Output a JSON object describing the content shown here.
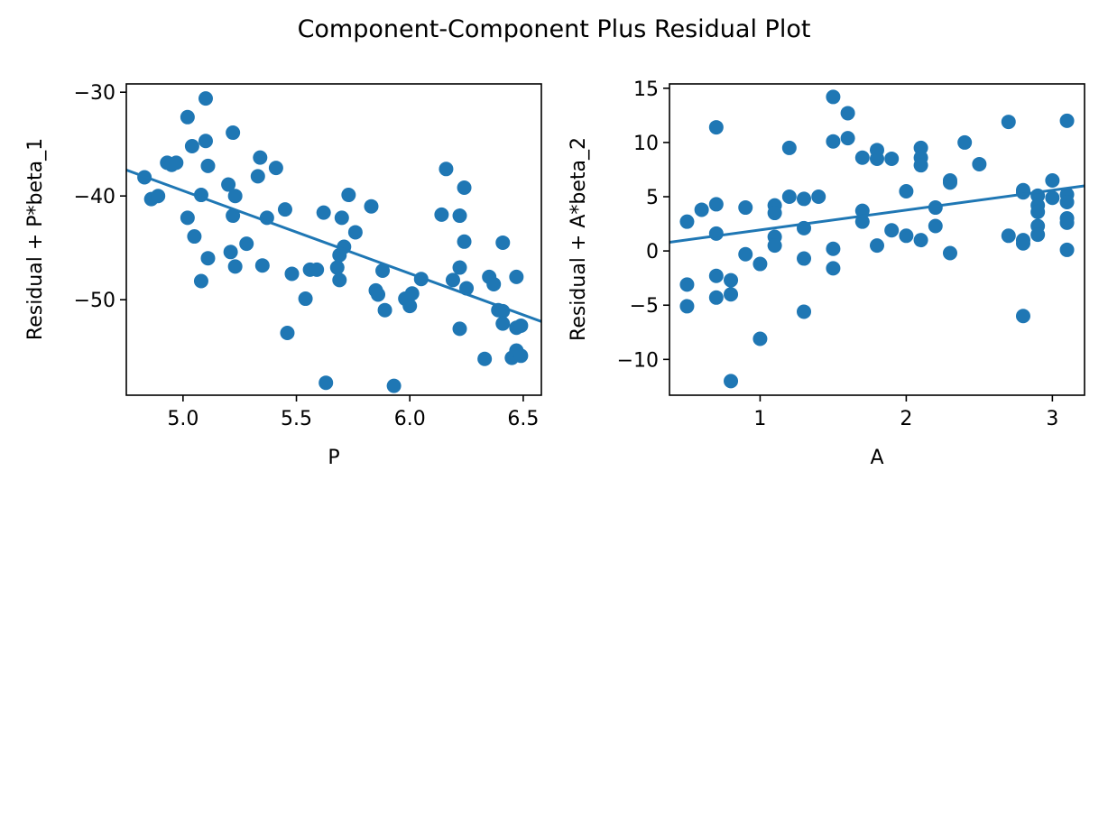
{
  "figure": {
    "title": "Component-Component Plus Residual Plot"
  },
  "colors": {
    "series": "#1f77b4",
    "axes": "#000000",
    "background": "#ffffff"
  },
  "chart_data": [
    {
      "type": "scatter",
      "panel": "left",
      "title": "",
      "xlabel": "P",
      "ylabel": "Residual + P*beta_1",
      "xlim": [
        4.75,
        6.58
      ],
      "ylim": [
        -59.2,
        -29.2
      ],
      "xticks": [
        5.0,
        5.5,
        6.0,
        6.5
      ],
      "xtick_labels": [
        "5.0",
        "5.5",
        "6.0",
        "6.5"
      ],
      "yticks": [
        -30,
        -40,
        -50
      ],
      "ytick_labels": [
        "−30",
        "−40",
        "−50"
      ],
      "grid": false,
      "points": [
        [
          4.83,
          -38.2
        ],
        [
          4.86,
          -40.3
        ],
        [
          4.89,
          -40.0
        ],
        [
          4.93,
          -36.8
        ],
        [
          4.95,
          -37.0
        ],
        [
          4.97,
          -36.8
        ],
        [
          5.02,
          -32.4
        ],
        [
          5.02,
          -42.1
        ],
        [
          5.04,
          -35.2
        ],
        [
          5.05,
          -43.9
        ],
        [
          5.08,
          -39.9
        ],
        [
          5.08,
          -48.2
        ],
        [
          5.1,
          -30.6
        ],
        [
          5.1,
          -34.7
        ],
        [
          5.11,
          -37.1
        ],
        [
          5.11,
          -46.0
        ],
        [
          5.2,
          -38.9
        ],
        [
          5.21,
          -45.4
        ],
        [
          5.22,
          -33.9
        ],
        [
          5.22,
          -41.9
        ],
        [
          5.23,
          -40.0
        ],
        [
          5.23,
          -46.8
        ],
        [
          5.28,
          -44.6
        ],
        [
          5.33,
          -38.1
        ],
        [
          5.34,
          -36.3
        ],
        [
          5.35,
          -46.7
        ],
        [
          5.37,
          -42.1
        ],
        [
          5.41,
          -37.3
        ],
        [
          5.45,
          -41.3
        ],
        [
          5.46,
          -53.2
        ],
        [
          5.48,
          -47.5
        ],
        [
          5.54,
          -49.9
        ],
        [
          5.56,
          -47.1
        ],
        [
          5.59,
          -47.1
        ],
        [
          5.62,
          -41.6
        ],
        [
          5.63,
          -58.0
        ],
        [
          5.68,
          -46.9
        ],
        [
          5.69,
          -45.7
        ],
        [
          5.69,
          -48.1
        ],
        [
          5.7,
          -42.1
        ],
        [
          5.71,
          -44.9
        ],
        [
          5.73,
          -39.9
        ],
        [
          5.76,
          -43.5
        ],
        [
          5.83,
          -41.0
        ],
        [
          5.85,
          -49.1
        ],
        [
          5.86,
          -49.5
        ],
        [
          5.88,
          -47.2
        ],
        [
          5.89,
          -51.0
        ],
        [
          5.93,
          -58.3
        ],
        [
          5.98,
          -49.9
        ],
        [
          6.0,
          -50.6
        ],
        [
          6.01,
          -49.4
        ],
        [
          6.05,
          -48.0
        ],
        [
          6.14,
          -41.8
        ],
        [
          6.16,
          -37.4
        ],
        [
          6.19,
          -48.1
        ],
        [
          6.22,
          -41.9
        ],
        [
          6.22,
          -46.9
        ],
        [
          6.22,
          -52.8
        ],
        [
          6.24,
          -39.2
        ],
        [
          6.24,
          -44.4
        ],
        [
          6.25,
          -48.9
        ],
        [
          6.33,
          -55.7
        ],
        [
          6.35,
          -47.8
        ],
        [
          6.37,
          -48.5
        ],
        [
          6.39,
          -51.0
        ],
        [
          6.41,
          -44.5
        ],
        [
          6.41,
          -51.1
        ],
        [
          6.41,
          -52.3
        ],
        [
          6.45,
          -55.6
        ],
        [
          6.47,
          -47.8
        ],
        [
          6.47,
          -54.9
        ],
        [
          6.47,
          -52.7
        ],
        [
          6.49,
          -52.5
        ],
        [
          6.49,
          -55.4
        ]
      ],
      "fit_line": {
        "x": [
          4.75,
          6.58
        ],
        "y": [
          -37.5,
          -52.1
        ]
      }
    },
    {
      "type": "scatter",
      "panel": "right",
      "title": "",
      "xlabel": "A",
      "ylabel": "Residual + A*beta_2",
      "xlim": [
        0.38,
        3.22
      ],
      "ylim": [
        -13.3,
        15.4
      ],
      "xticks": [
        1,
        2,
        3
      ],
      "xtick_labels": [
        "1",
        "2",
        "3"
      ],
      "yticks": [
        15,
        10,
        5,
        0,
        -5,
        -10
      ],
      "ytick_labels": [
        "15",
        "10",
        "5",
        "0",
        "−5",
        "−10"
      ],
      "grid": false,
      "points": [
        [
          0.5,
          2.7
        ],
        [
          0.5,
          -3.1
        ],
        [
          0.5,
          -5.1
        ],
        [
          0.6,
          3.8
        ],
        [
          0.7,
          11.4
        ],
        [
          0.7,
          4.3
        ],
        [
          0.7,
          1.6
        ],
        [
          0.7,
          -2.3
        ],
        [
          0.7,
          -4.3
        ],
        [
          0.8,
          -2.7
        ],
        [
          0.8,
          -4.0
        ],
        [
          0.8,
          -12.0
        ],
        [
          0.9,
          4.0
        ],
        [
          0.9,
          -0.3
        ],
        [
          1.0,
          -1.2
        ],
        [
          1.0,
          -8.1
        ],
        [
          1.1,
          4.2
        ],
        [
          1.1,
          3.5
        ],
        [
          1.1,
          1.3
        ],
        [
          1.1,
          0.5
        ],
        [
          1.2,
          9.5
        ],
        [
          1.2,
          5.0
        ],
        [
          1.3,
          4.8
        ],
        [
          1.3,
          2.1
        ],
        [
          1.3,
          -0.7
        ],
        [
          1.3,
          -5.6
        ],
        [
          1.4,
          5.0
        ],
        [
          1.5,
          14.2
        ],
        [
          1.5,
          10.1
        ],
        [
          1.5,
          0.2
        ],
        [
          1.5,
          -1.6
        ],
        [
          1.6,
          12.7
        ],
        [
          1.6,
          10.4
        ],
        [
          1.7,
          8.6
        ],
        [
          1.7,
          3.7
        ],
        [
          1.7,
          2.7
        ],
        [
          1.8,
          9.3
        ],
        [
          1.8,
          8.5
        ],
        [
          1.8,
          0.5
        ],
        [
          1.9,
          8.5
        ],
        [
          1.9,
          1.9
        ],
        [
          2.0,
          5.5
        ],
        [
          2.0,
          1.4
        ],
        [
          2.1,
          9.5
        ],
        [
          2.1,
          8.6
        ],
        [
          2.1,
          7.9
        ],
        [
          2.1,
          1.0
        ],
        [
          2.2,
          4.0
        ],
        [
          2.2,
          2.3
        ],
        [
          2.3,
          6.5
        ],
        [
          2.3,
          6.3
        ],
        [
          2.3,
          -0.2
        ],
        [
          2.4,
          10.0
        ],
        [
          2.5,
          8.0
        ],
        [
          2.7,
          11.9
        ],
        [
          2.7,
          1.4
        ],
        [
          2.8,
          5.6
        ],
        [
          2.8,
          5.4
        ],
        [
          2.8,
          1.0
        ],
        [
          2.8,
          0.7
        ],
        [
          2.8,
          -6.0
        ],
        [
          2.9,
          5.1
        ],
        [
          2.9,
          4.2
        ],
        [
          2.9,
          3.6
        ],
        [
          2.9,
          2.3
        ],
        [
          2.9,
          1.5
        ],
        [
          3.0,
          6.5
        ],
        [
          3.0,
          4.9
        ],
        [
          3.1,
          12.0
        ],
        [
          3.1,
          5.2
        ],
        [
          3.1,
          4.5
        ],
        [
          3.1,
          3.0
        ],
        [
          3.1,
          2.6
        ],
        [
          3.1,
          0.1
        ]
      ],
      "fit_line": {
        "x": [
          0.38,
          3.22
        ],
        "y": [
          0.8,
          6.0
        ]
      }
    }
  ]
}
